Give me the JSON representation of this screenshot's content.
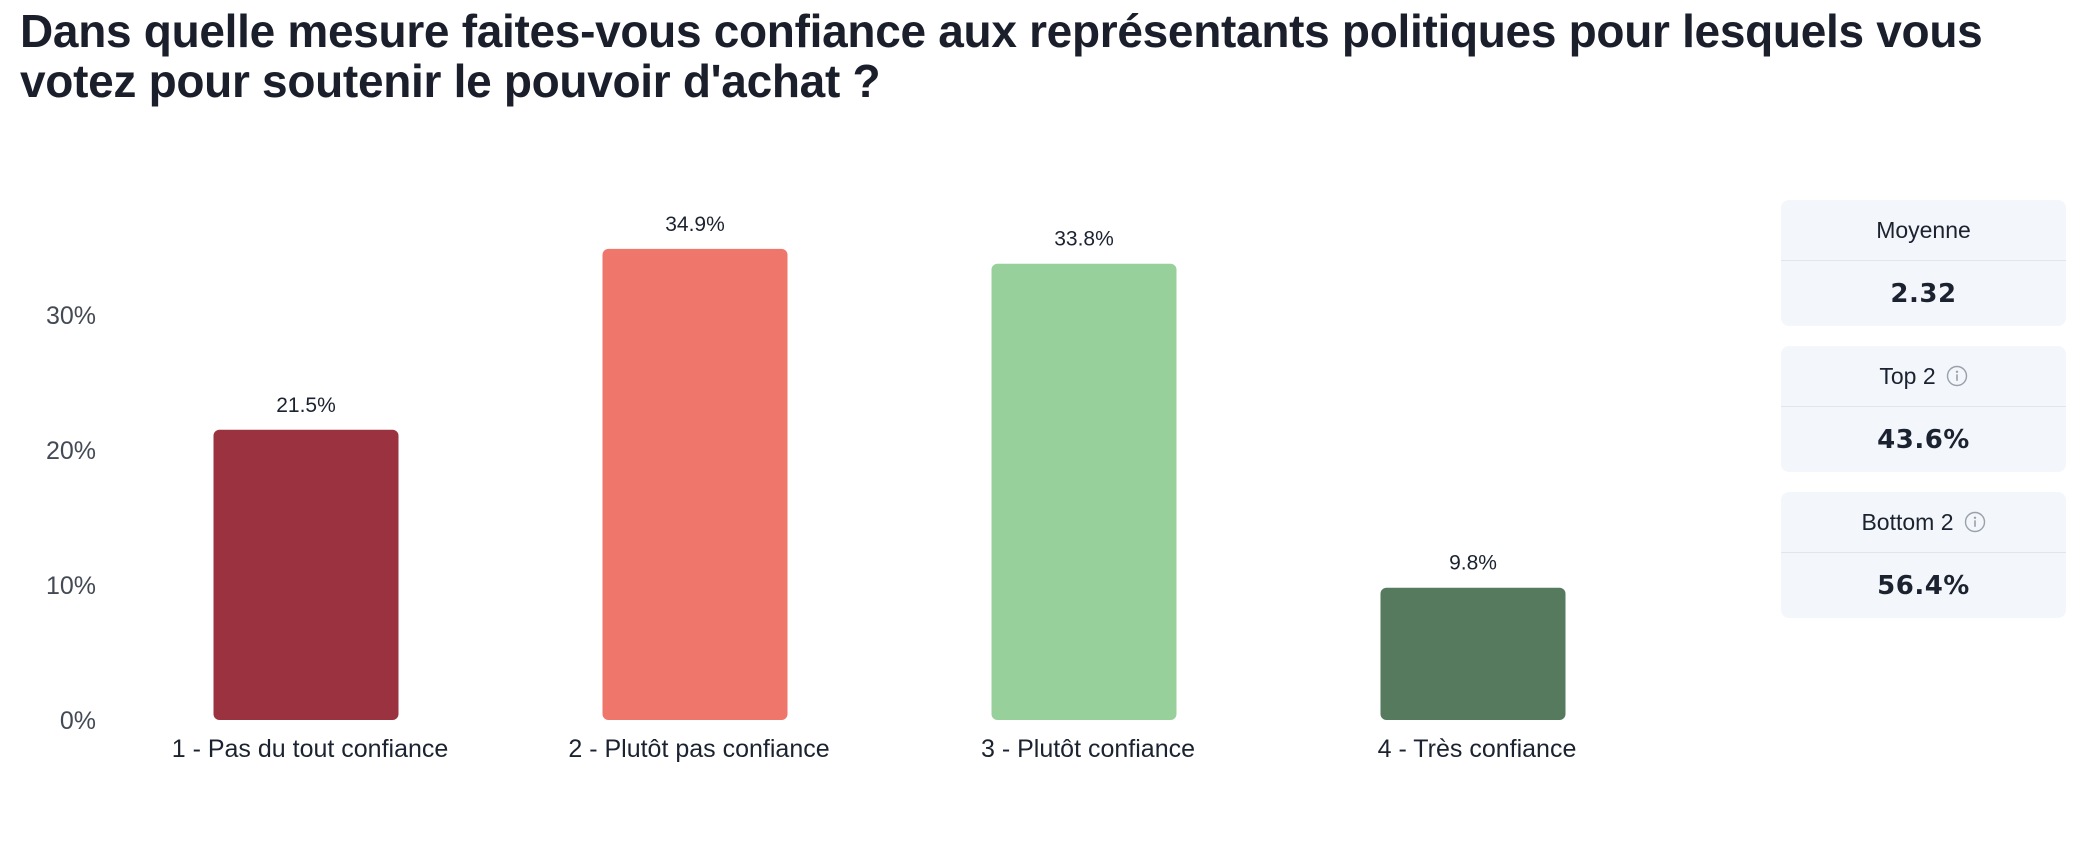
{
  "chart_data": {
    "type": "bar",
    "title": "Dans quelle mesure faites-vous confiance aux représentants politiques pour lesquels vous votez pour soutenir le pouvoir d'achat ?",
    "categories": [
      "1 - Pas du tout confiance",
      "2 - Plutôt pas confiance",
      "3 - Plutôt confiance",
      "4 - Très confiance"
    ],
    "values": [
      21.5,
      34.9,
      33.8,
      9.8
    ],
    "value_labels": [
      "21.5%",
      "34.9%",
      "33.8%",
      "9.8%"
    ],
    "colors": [
      "#9b3240",
      "#ee766b",
      "#97d09a",
      "#567a5e"
    ],
    "yticks": [
      0,
      10,
      20,
      30
    ],
    "ytick_labels": [
      "0%",
      "10%",
      "20%",
      "30%"
    ],
    "ylim": [
      0,
      35
    ],
    "xlabel": "",
    "ylabel": "",
    "grid": false,
    "legend": "none"
  },
  "stats": {
    "moyenne": {
      "label": "Moyenne",
      "value": "2.32"
    },
    "top2": {
      "label": "Top 2",
      "value": "43.6%",
      "icon": "info-icon"
    },
    "bottom2": {
      "label": "Bottom 2",
      "value": "56.4%",
      "icon": "info-icon"
    }
  },
  "colors": {
    "card_bg": "#f3f6fa",
    "text": "#1b2230"
  }
}
